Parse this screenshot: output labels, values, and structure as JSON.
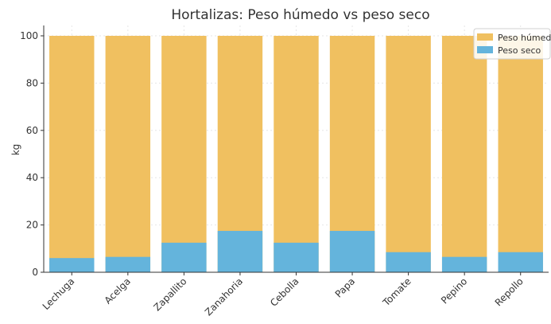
{
  "chart_data": {
    "type": "bar",
    "title": "Hortalizas: Peso húmedo vs peso seco",
    "xlabel": "",
    "ylabel": "kg",
    "ylim": [
      0,
      100
    ],
    "yticks": [
      0,
      20,
      40,
      60,
      80,
      100
    ],
    "categories": [
      "Lechuga",
      "Acelga",
      "Zapallito",
      "Zanahoria",
      "Cebolla",
      "Papa",
      "Tomate",
      "Pepino",
      "Repollo"
    ],
    "series": [
      {
        "name": "Peso húmedo",
        "color": "#F0C060",
        "values": [
          100,
          100,
          100,
          100,
          100,
          100,
          100,
          100,
          100
        ]
      },
      {
        "name": "Peso seco",
        "color": "#64B4DC",
        "values": [
          6,
          6.5,
          12.5,
          17.5,
          12.5,
          17.5,
          8.5,
          6.5,
          8.5
        ]
      }
    ],
    "grid": true,
    "legend_position": "top-right"
  }
}
